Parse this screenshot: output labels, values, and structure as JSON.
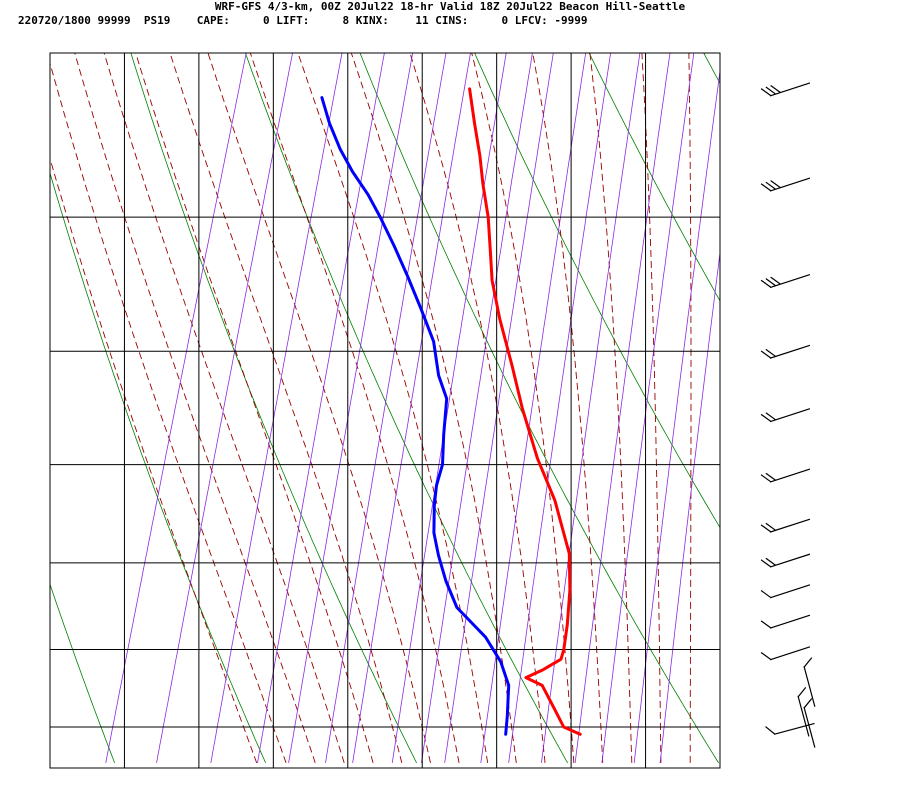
{
  "header": {
    "title": "WRF-GFS 4/3-km, 00Z 20Jul22 18-hr Valid 18Z 20Jul22 Beacon Hill-Seattle",
    "stats": "220720/1800 99999  PS19    CAPE:     0 LIFT:     8 KINX:    11 CINS:     0 LFCV: -9999"
  },
  "chart_data": {
    "type": "line",
    "subtype": "skew-T log-P sounding",
    "xlabel": "",
    "ylabel": "",
    "xlim": [
      -50,
      40
    ],
    "ylim": [
      1040,
      400
    ],
    "y_scale": "log (pressure, hPa)",
    "x_ticks": [
      "-50",
      "-40",
      "-30",
      "-20",
      "-10",
      "0",
      "10",
      "20",
      "30",
      "40"
    ],
    "y_ticks": [
      "400",
      "500",
      "600",
      "700",
      "800",
      "900",
      "1000"
    ],
    "y_tick_values": [
      400,
      500,
      600,
      700,
      800,
      900,
      1000
    ],
    "grid": true,
    "colors": {
      "temperature": "#ff0000",
      "dewpoint": "#0000ff",
      "dry_adiabat": "#008000",
      "moist_adiabat": "#990000",
      "mixing_ratio": "#8a2be2",
      "grid": "#000000"
    },
    "series": [
      {
        "values": [
          [
            21.5,
            1010
          ],
          [
            19,
            1000
          ],
          [
            17,
            975
          ],
          [
            14.5,
            945
          ],
          [
            12,
            935
          ],
          [
            14,
            925
          ],
          [
            16,
            912
          ],
          [
            16,
            900
          ],
          [
            15.5,
            870
          ],
          [
            14.5,
            830
          ],
          [
            13,
            790
          ],
          [
            11,
            762
          ],
          [
            9,
            735
          ],
          [
            5,
            694
          ],
          [
            1,
            648
          ],
          [
            -2,
            612
          ],
          [
            -5.5,
            574
          ],
          [
            -8,
            545
          ],
          [
            -9.5,
            522
          ],
          [
            -11,
            500
          ],
          [
            -13,
            478
          ],
          [
            -14.5,
            460
          ],
          [
            -16.5,
            440
          ],
          [
            -18.5,
            420
          ]
        ]
      },
      {
        "values": [
          [
            11.5,
            1010
          ],
          [
            11,
            985
          ],
          [
            10.5,
            965
          ],
          [
            10,
            945
          ],
          [
            8,
            915
          ],
          [
            5,
            885
          ],
          [
            0,
            850
          ],
          [
            -2.5,
            820
          ],
          [
            -4.5,
            792
          ],
          [
            -6,
            768
          ],
          [
            -7,
            740
          ],
          [
            -7.5,
            720
          ],
          [
            -7.5,
            700
          ],
          [
            -8.5,
            672
          ],
          [
            -9.5,
            640
          ],
          [
            -11.5,
            620
          ],
          [
            -13.5,
            592
          ],
          [
            -16.5,
            566
          ],
          [
            -19.5,
            542
          ],
          [
            -22.5,
            520
          ],
          [
            -25.5,
            500
          ],
          [
            -28,
            485
          ],
          [
            -31,
            470
          ],
          [
            -33.5,
            456
          ],
          [
            -36,
            440
          ],
          [
            -38,
            425
          ]
        ]
      }
    ],
    "wind_barbs_levels": [
      420,
      478,
      545,
      600,
      654,
      710,
      760,
      797,
      831,
      866,
      904,
      946,
      985,
      1000,
      1010
    ]
  }
}
